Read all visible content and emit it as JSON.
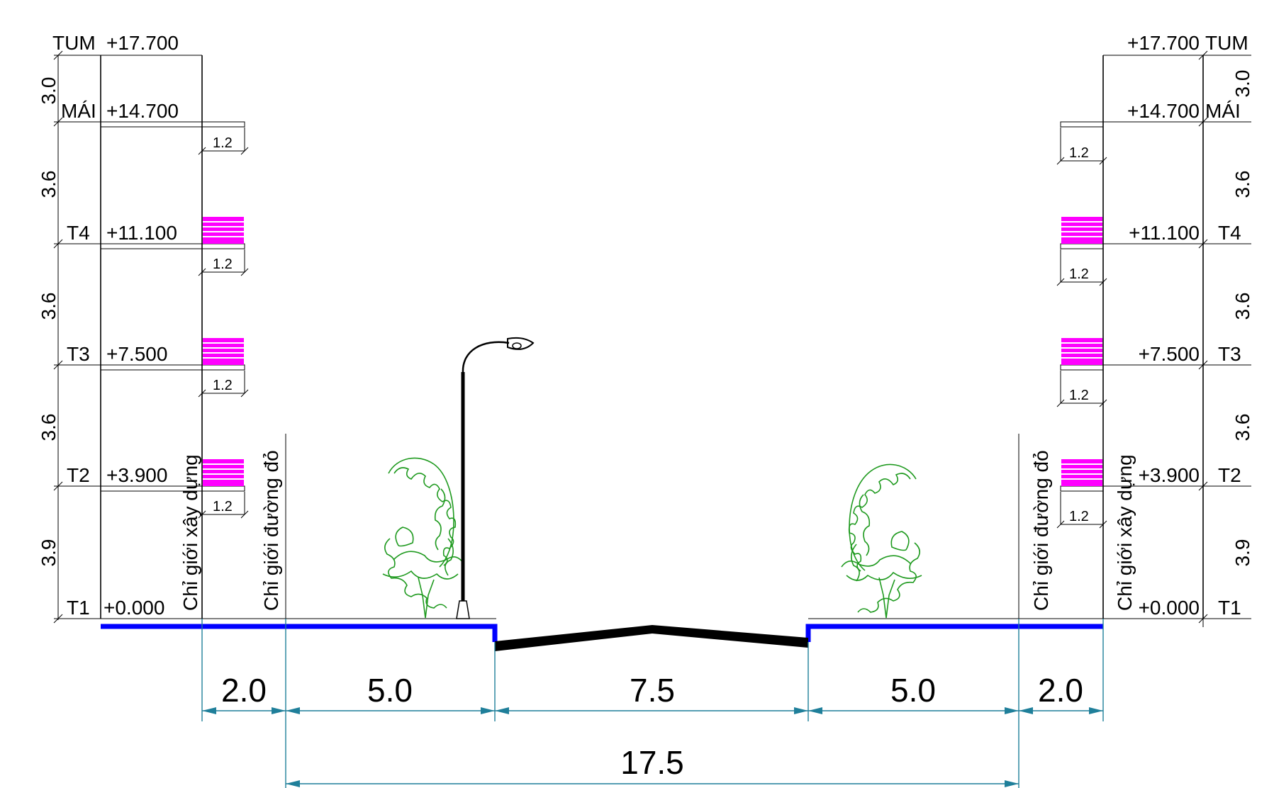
{
  "floors": {
    "tum": {
      "name": "TUM",
      "elev": "+17.700",
      "height": "3.0"
    },
    "mai": {
      "name": "MÁI",
      "elev": "+14.700",
      "height": "3.6"
    },
    "t4": {
      "name": "T4",
      "elev": "+11.100",
      "height": "3.6"
    },
    "t3": {
      "name": "T3",
      "elev": "+7.500",
      "height": "3.6"
    },
    "t2": {
      "name": "T2",
      "elev": "+3.900",
      "height": "3.9"
    },
    "t1": {
      "name": "T1",
      "elev": "+0.000"
    }
  },
  "balcony_dim": "1.2",
  "labels": {
    "build_line": "Chỉ giới xây dựng",
    "road_line": "Chỉ giới đường đỏ"
  },
  "dimensions": {
    "setback_left": "2.0",
    "sidewalk_left": "5.0",
    "carriageway": "7.5",
    "sidewalk_right": "5.0",
    "setback_right": "2.0",
    "total": "17.5"
  },
  "colors": {
    "sidewalk": "#0000ff",
    "road": "#000000",
    "balcony_rail": "#ff00ff",
    "tree": "#1f9a1f",
    "dimension": "#1f7f9a"
  }
}
